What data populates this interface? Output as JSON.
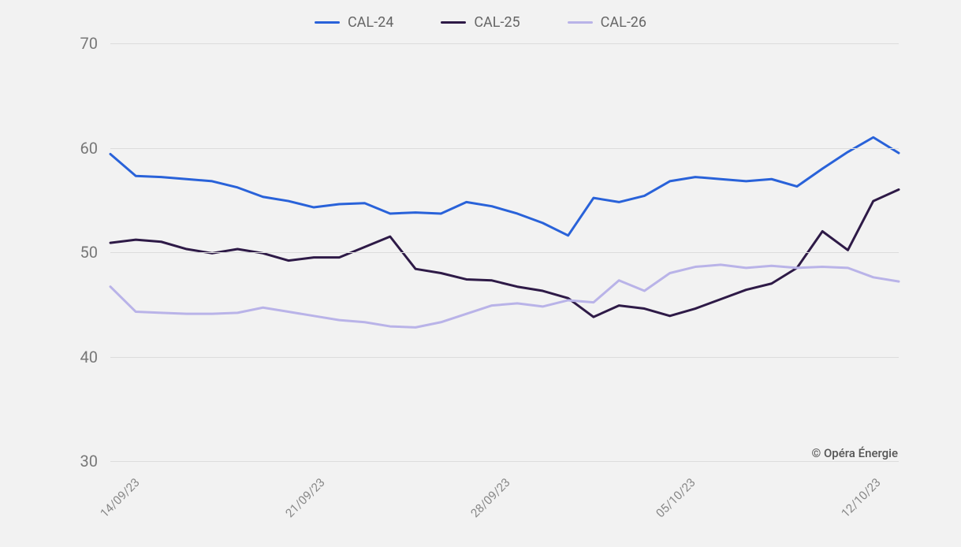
{
  "chart": {
    "type": "line",
    "background_color": "#f2f2f2",
    "grid_color": "#dcdcdc",
    "axis_text_color": "#777",
    "legend_text_color": "#666",
    "copyright": "© Opéra Énergie",
    "copyright_color": "#555",
    "ylim": [
      30,
      70
    ],
    "ytick_step": 10,
    "yticks": [
      30,
      40,
      50,
      60,
      70
    ],
    "x_labels": [
      "14/09/23",
      "21/09/23",
      "28/09/23",
      "05/10/23",
      "12/10/23"
    ],
    "x_label_positions_pct": [
      2,
      25.5,
      49,
      72.5,
      96
    ],
    "series": [
      {
        "name": "CAL-24",
        "color": "#2962d9",
        "line_width": 3,
        "values": [
          59.4,
          57.3,
          57.2,
          57.0,
          56.8,
          56.2,
          55.3,
          54.9,
          54.3,
          54.6,
          54.7,
          53.7,
          53.8,
          53.7,
          54.8,
          54.4,
          53.7,
          52.8,
          51.6,
          55.2,
          54.8,
          55.4,
          56.8,
          57.2,
          57.0,
          56.8,
          57.0,
          56.3,
          58.0,
          59.6,
          61.0,
          59.5
        ]
      },
      {
        "name": "CAL-25",
        "color": "#2e1a47",
        "line_width": 3,
        "values": [
          50.9,
          51.2,
          51.0,
          50.3,
          49.9,
          50.3,
          49.9,
          49.2,
          49.5,
          49.5,
          50.5,
          51.5,
          48.4,
          48.0,
          47.4,
          47.3,
          46.7,
          46.3,
          45.6,
          43.8,
          44.9,
          44.6,
          43.9,
          44.6,
          45.5,
          46.4,
          47.0,
          48.5,
          52.0,
          50.2,
          54.9,
          56.0
        ]
      },
      {
        "name": "CAL-26",
        "color": "#b9b3e8",
        "line_width": 3,
        "values": [
          46.7,
          44.3,
          44.2,
          44.1,
          44.1,
          44.2,
          44.7,
          44.3,
          43.9,
          43.5,
          43.3,
          42.9,
          42.8,
          43.3,
          44.1,
          44.9,
          45.1,
          44.8,
          45.4,
          45.2,
          47.3,
          46.3,
          48.0,
          48.6,
          48.8,
          48.5,
          48.7,
          48.5,
          48.6,
          48.5,
          47.6,
          47.2
        ]
      }
    ]
  }
}
